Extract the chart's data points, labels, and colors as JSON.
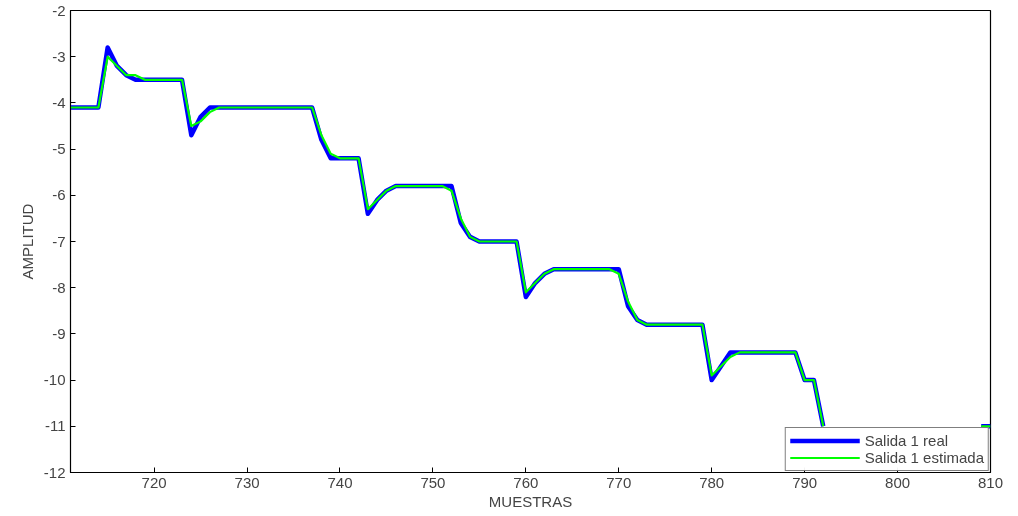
{
  "chart_data": {
    "type": "line",
    "xlabel": "MUESTRAS",
    "ylabel": "AMPLITUD",
    "x": [
      711,
      712,
      713,
      714,
      715,
      716,
      717,
      718,
      719,
      720,
      721,
      722,
      723,
      724,
      725,
      726,
      727,
      728,
      729,
      730,
      731,
      732,
      733,
      734,
      735,
      736,
      737,
      738,
      739,
      740,
      741,
      742,
      743,
      744,
      745,
      746,
      747,
      748,
      749,
      750,
      751,
      752,
      753,
      754,
      755,
      756,
      757,
      758,
      759,
      760,
      761,
      762,
      763,
      764,
      765,
      766,
      767,
      768,
      769,
      770,
      771,
      772,
      773,
      774,
      775,
      776,
      777,
      778,
      779,
      780,
      781,
      782,
      783,
      784,
      785,
      786,
      787,
      788,
      789,
      790,
      791,
      792,
      793,
      794,
      795,
      796,
      797,
      798,
      799,
      800,
      801,
      802,
      803,
      804,
      805,
      806,
      807,
      808,
      809,
      810
    ],
    "series": [
      {
        "name": "Salida 1 real",
        "color": "#0000ff",
        "values": [
          -4.1,
          -4.1,
          -4.1,
          -4.1,
          -2.8,
          -3.2,
          -3.4,
          -3.5,
          -3.5,
          -3.5,
          -3.5,
          -3.5,
          -3.5,
          -4.7,
          -4.3,
          -4.1,
          -4.1,
          -4.1,
          -4.1,
          -4.1,
          -4.1,
          -4.1,
          -4.1,
          -4.1,
          -4.1,
          -4.1,
          -4.1,
          -4.8,
          -5.2,
          -5.2,
          -5.2,
          -5.2,
          -6.4,
          -6.1,
          -5.9,
          -5.8,
          -5.8,
          -5.8,
          -5.8,
          -5.8,
          -5.8,
          -5.8,
          -6.6,
          -6.9,
          -7.0,
          -7.0,
          -7.0,
          -7.0,
          -7.0,
          -8.2,
          -7.9,
          -7.7,
          -7.6,
          -7.6,
          -7.6,
          -7.6,
          -7.6,
          -7.6,
          -7.6,
          -7.6,
          -8.4,
          -8.7,
          -8.8,
          -8.8,
          -8.8,
          -8.8,
          -8.8,
          -8.8,
          -8.8,
          -10.0,
          -9.7,
          -9.4,
          -9.4,
          -9.4,
          -9.4,
          -9.4,
          -9.4,
          -9.4,
          -9.4,
          -10.0,
          -10.0,
          -11.0,
          null,
          null,
          null,
          null,
          null,
          null,
          null,
          null,
          null,
          null,
          null,
          null,
          null,
          null,
          null,
          null,
          -11.0,
          -11.0
        ]
      },
      {
        "name": "Salida 1 estimada",
        "color": "#00ff00",
        "values": [
          -4.1,
          -4.1,
          -4.1,
          -4.1,
          -3.0,
          -3.2,
          -3.4,
          -3.4,
          -3.5,
          -3.5,
          -3.5,
          -3.5,
          -3.5,
          -4.5,
          -4.4,
          -4.2,
          -4.1,
          -4.1,
          -4.1,
          -4.1,
          -4.1,
          -4.1,
          -4.1,
          -4.1,
          -4.1,
          -4.1,
          -4.1,
          -4.7,
          -5.1,
          -5.2,
          -5.2,
          -5.2,
          -6.3,
          -6.1,
          -5.9,
          -5.8,
          -5.8,
          -5.8,
          -5.8,
          -5.8,
          -5.8,
          -5.9,
          -6.5,
          -6.9,
          -7.0,
          -7.0,
          -7.0,
          -7.0,
          -7.0,
          -8.1,
          -7.9,
          -7.7,
          -7.6,
          -7.6,
          -7.6,
          -7.6,
          -7.6,
          -7.6,
          -7.6,
          -7.7,
          -8.3,
          -8.7,
          -8.8,
          -8.8,
          -8.8,
          -8.8,
          -8.8,
          -8.8,
          -8.8,
          -9.9,
          -9.7,
          -9.5,
          -9.4,
          -9.4,
          -9.4,
          -9.4,
          -9.4,
          -9.4,
          -9.4,
          -10.0,
          -10.0,
          -11.0,
          null,
          null,
          null,
          null,
          null,
          null,
          null,
          null,
          null,
          null,
          null,
          null,
          null,
          null,
          null,
          null,
          -11.0,
          -11.0
        ]
      }
    ],
    "xlim": [
      711,
      810
    ],
    "xticks": [
      720,
      730,
      740,
      750,
      760,
      770,
      780,
      790,
      800,
      810
    ],
    "ylim": [
      -12,
      -2
    ],
    "yticks": [
      -12,
      -11,
      -10,
      -9,
      -8,
      -7,
      -6,
      -5,
      -4,
      -3,
      -2
    ],
    "grid": false,
    "legend": "bottom right",
    "line_style": "solid",
    "marker": "none"
  }
}
